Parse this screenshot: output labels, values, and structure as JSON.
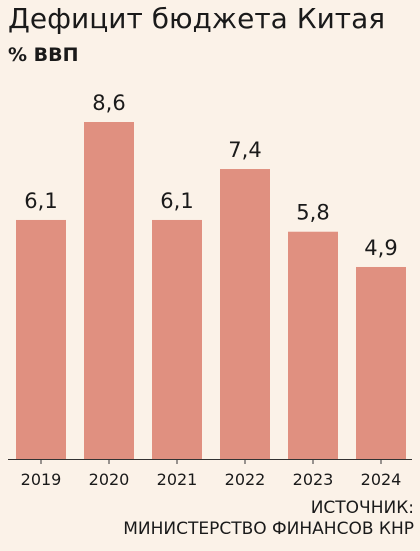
{
  "chart_data": {
    "type": "bar",
    "title": "Дефицит бюджета Китая",
    "subtitle": "% ВВП",
    "categories": [
      "2019",
      "2020",
      "2021",
      "2022",
      "2023",
      "2024"
    ],
    "values": [
      6.1,
      8.6,
      6.1,
      7.4,
      5.8,
      4.9
    ],
    "value_labels": [
      "6,1",
      "8,6",
      "6,1",
      "7,4",
      "5,8",
      "4,9"
    ],
    "xlabel": "",
    "ylabel": "",
    "ylim": [
      0,
      8.6
    ],
    "grid": false,
    "legend": "none",
    "bar_color": "#e09080"
  },
  "source": {
    "line1": "ИСТОЧНИК:",
    "line2": "МИНИСТЕРСТВО ФИНАНСОВ КНР"
  }
}
